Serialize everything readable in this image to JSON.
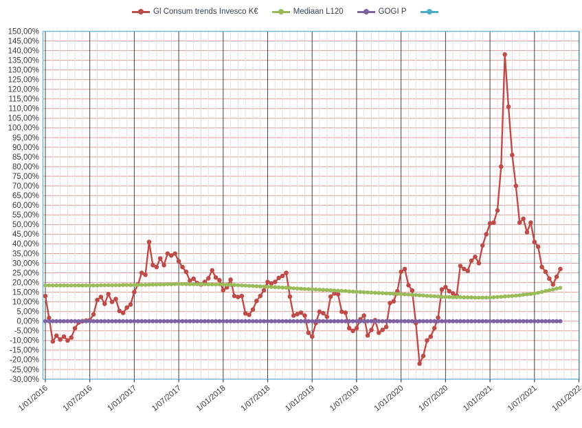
{
  "legend": {
    "items": [
      {
        "label": "Gl Consum trends Invesco K€",
        "color": "#BE4B48",
        "marker": "circle"
      },
      {
        "label": "Mediaan L120",
        "color": "#9ABB59",
        "marker": "circle"
      },
      {
        "label": "GOGI P",
        "color": "#7E62A1",
        "marker": "circle"
      },
      {
        "label": "",
        "color": "#4BACC6",
        "marker": "circle"
      }
    ]
  },
  "figure": {
    "background": "#FFFFFF",
    "plot_border_color": "#6FB2D8",
    "h_grid_color": "#DD9E9C",
    "v_minor_grid_color": "#F3DBDA",
    "v_major_grid_color": "#3F3F3F",
    "axis_text_color": "#3B3B3B",
    "tick_color": "#3F3F3F"
  },
  "chart_data": {
    "type": "line",
    "title": "",
    "xlabel": "",
    "ylabel": "",
    "grid": "on",
    "legend_position": "top",
    "y_axis": {
      "min": -30,
      "max": 150,
      "step": 5,
      "tick_labels": [
        "150,00%",
        "145,00%",
        "140,00%",
        "135,00%",
        "130,00%",
        "125,00%",
        "120,00%",
        "115,00%",
        "110,00%",
        "105,00%",
        "100,00%",
        "95,00%",
        "90,00%",
        "85,00%",
        "80,00%",
        "75,00%",
        "70,00%",
        "65,00%",
        "60,00%",
        "55,00%",
        "50,00%",
        "45,00%",
        "40,00%",
        "35,00%",
        "30,00%",
        "25,00%",
        "20,00%",
        "15,00%",
        "10,00%",
        "5,00%",
        "0,00%",
        "-5,00%",
        "-10,00%",
        "-15,00%",
        "-20,00%",
        "-25,00%",
        "-30,00%"
      ]
    },
    "x_axis": {
      "tick_labels": [
        "1/01/2016",
        "1/07/2016",
        "1/01/2017",
        "1/07/2017",
        "1/01/2018",
        "1/07/2018",
        "1/01/2019",
        "1/07/2019",
        "1/01/2020",
        "1/07/2020",
        "1/01/2021",
        "1/07/2021",
        "1/01/2022"
      ],
      "minor_gridlines_per_major": 6
    },
    "points_per_half_year": 12,
    "series": [
      {
        "name": "Gl Consum trends Invesco K€",
        "color": "#BE4B48",
        "line_width": 2.4,
        "marker_radius": 3.3,
        "values": [
          13,
          1.7,
          -10.5,
          -7.5,
          -9.5,
          -8,
          -10,
          -8.5,
          -3.7,
          -0.7,
          0,
          0.3,
          0.5,
          3.5,
          11,
          12.5,
          9,
          14,
          10,
          11.5,
          5.3,
          4.3,
          7,
          8.6,
          15,
          19,
          25,
          24,
          41,
          29,
          28,
          32.5,
          29,
          35,
          34,
          35,
          31,
          28,
          25.5,
          21,
          22,
          19.7,
          19,
          20.3,
          22.2,
          26.3,
          22.6,
          21.2,
          16,
          17.5,
          21.5,
          13,
          12.5,
          13,
          4,
          3.3,
          6,
          10.5,
          13,
          16,
          20.3,
          19.5,
          20.3,
          22.4,
          23.4,
          25,
          12.7,
          2.9,
          3.7,
          4.4,
          2.9,
          -6,
          -8,
          -1,
          4.9,
          4.1,
          2.3,
          12.7,
          14.4,
          13.9,
          4.9,
          4.4,
          -3.6,
          -5,
          -3.6,
          0.9,
          2.9,
          -7.4,
          -4.5,
          0.5,
          -6,
          -4.5,
          -3,
          9.4,
          10.3,
          15.5,
          25.6,
          27,
          18.6,
          15.9,
          -1,
          -22,
          -18,
          -10,
          -8,
          -3.6,
          1.8,
          16.4,
          17.6,
          15.5,
          14.4,
          13.2,
          28.6,
          27,
          26,
          31.3,
          33.3,
          30,
          39.2,
          45,
          50.6,
          51,
          57.3,
          80,
          138,
          111,
          86,
          70,
          51,
          53,
          46,
          51,
          41,
          38.5,
          28,
          25.6,
          22,
          19,
          23,
          27
        ]
      },
      {
        "name": "Mediaan L120",
        "color": "#9ABB59",
        "line_width": 3.6,
        "marker_radius": 2.9,
        "values": [
          18.5,
          18.5,
          18.5,
          18.5,
          18.5,
          18.5,
          18.5,
          18.5,
          18.5,
          18.5,
          18.5,
          18.5,
          18.5,
          18.5,
          18.5,
          18.6,
          18.6,
          18.6,
          18.6,
          18.6,
          18.6,
          18.7,
          18.7,
          18.7,
          18.7,
          18.7,
          18.8,
          18.8,
          18.9,
          18.9,
          19.0,
          19.0,
          19.0,
          19.1,
          19.1,
          19.2,
          19.2,
          19.2,
          19.2,
          19.1,
          19.1,
          19.1,
          19.1,
          19.1,
          19.0,
          19.0,
          19.0,
          19.0,
          19.0,
          18.9,
          18.8,
          18.7,
          18.6,
          18.5,
          18.4,
          18.3,
          18.2,
          18.1,
          18.0,
          17.9,
          17.8,
          17.7,
          17.6,
          17.5,
          17.4,
          17.3,
          17.2,
          17.0,
          16.9,
          16.8,
          16.7,
          16.6,
          16.5,
          16.4,
          16.3,
          16.2,
          16.1,
          16.0,
          15.9,
          15.8,
          15.7,
          15.6,
          15.4,
          15.3,
          15.2,
          15.1,
          15.0,
          14.9,
          14.8,
          14.7,
          14.6,
          14.5,
          14.4,
          14.3,
          14.2,
          14.1,
          14.0,
          13.9,
          13.8,
          13.6,
          13.5,
          13.4,
          13.3,
          13.1,
          13.0,
          12.9,
          12.8,
          12.6,
          12.5,
          12.5,
          12.4,
          12.4,
          12.4,
          12.3,
          12.3,
          12.3,
          12.2,
          12.2,
          12.2,
          12.2,
          12.2,
          12.4,
          12.5,
          12.6,
          12.8,
          12.9,
          13.0,
          13.2,
          13.4,
          13.7,
          13.9,
          14.1,
          14.3,
          14.7,
          15.1,
          15.6,
          16.0,
          16.4,
          16.9,
          17.3
        ]
      },
      {
        "name": "GOGI P",
        "color": "#7E62A1",
        "line_width": 3.6,
        "marker_radius": 3.1,
        "constant_value": 0,
        "n_points": 140
      },
      {
        "name": "",
        "color": "#4BACC6",
        "line_width": 2,
        "marker_radius": 3,
        "values": []
      }
    ]
  }
}
